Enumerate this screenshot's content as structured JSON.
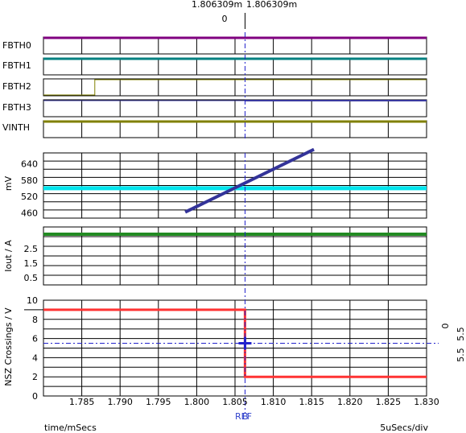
{
  "cursor": {
    "top_left": "1.806309m",
    "top_right": "1.806309m",
    "top_delta": "0",
    "ref_label": "REF",
    "b_label": "B"
  },
  "right_readout": {
    "value_a": "5.5",
    "delta": "0",
    "value_b": "5.5"
  },
  "footer": {
    "x_axis_label": "time/mSecs",
    "scale": "5uSecs/div"
  },
  "colors": {
    "FBTH0": "#800080",
    "FBTH1": "#008080",
    "FBTH2": "#808000",
    "FBTH3": "#3a3aa0",
    "VINTH": "#808000",
    "mv_line": "#333399",
    "mv_band": "#00e5ee",
    "iout_line": "#228b22",
    "nsz_line": "#ff3333",
    "cursor": "#2222cc",
    "grid": "#000000"
  },
  "chart_data": [
    {
      "type": "line",
      "title": "",
      "panel": "digital",
      "x": {
        "range": [
          1.78,
          1.83
        ],
        "unit": "mSecs"
      },
      "series": [
        {
          "name": "FBTH0",
          "level": "high",
          "transitions": []
        },
        {
          "name": "FBTH1",
          "level": "high",
          "transitions": []
        },
        {
          "name": "FBTH2",
          "segments": [
            {
              "x0": 1.78,
              "x1": 1.7867,
              "level": "low"
            },
            {
              "x0": 1.7867,
              "x1": 1.83,
              "level": "high"
            }
          ]
        },
        {
          "name": "FBTH3",
          "segments": [
            {
              "x0": 1.78,
              "x1": 1.8063,
              "level": "high"
            },
            {
              "x0": 1.8063,
              "x1": 1.83,
              "level": "high"
            }
          ]
        },
        {
          "name": "VINTH",
          "level": "high",
          "transitions": []
        }
      ]
    },
    {
      "type": "line",
      "title": "",
      "ylabel": "mV",
      "ylim": [
        440,
        680
      ],
      "yticks": [
        460,
        520,
        580,
        640
      ],
      "series": [
        {
          "x": [
            1.7985,
            1.8153
          ],
          "y": [
            462,
            693
          ]
        },
        {
          "x": [
            1.78,
            1.83
          ],
          "y": [
            550,
            550
          ]
        }
      ]
    },
    {
      "type": "line",
      "title": "",
      "ylabel": "Iout / A",
      "ylim": [
        0,
        4
      ],
      "yticks": [
        0.5,
        1.5,
        2.5
      ],
      "series": [
        {
          "x": [
            1.78,
            1.83
          ],
          "y": [
            3.5,
            3.5
          ]
        }
      ]
    },
    {
      "type": "line",
      "title": "",
      "xlabel": "time/mSecs",
      "ylabel": "NSZ Crossings / V",
      "xlim": [
        1.78,
        1.83
      ],
      "xticks": [
        "1.785",
        "1.790",
        "1.795",
        "1.800",
        "1.805",
        "1.810",
        "1.815",
        "1.820",
        "1.825",
        "1.830"
      ],
      "ylim": [
        0,
        10
      ],
      "yticks": [
        0,
        2,
        4,
        6,
        8,
        10
      ],
      "series": [
        {
          "x": [
            1.78,
            1.8063,
            1.8063,
            1.83
          ],
          "y": [
            9,
            9,
            2,
            2
          ]
        }
      ],
      "cursor": {
        "x": 1.806309,
        "y": 5.5
      }
    }
  ]
}
